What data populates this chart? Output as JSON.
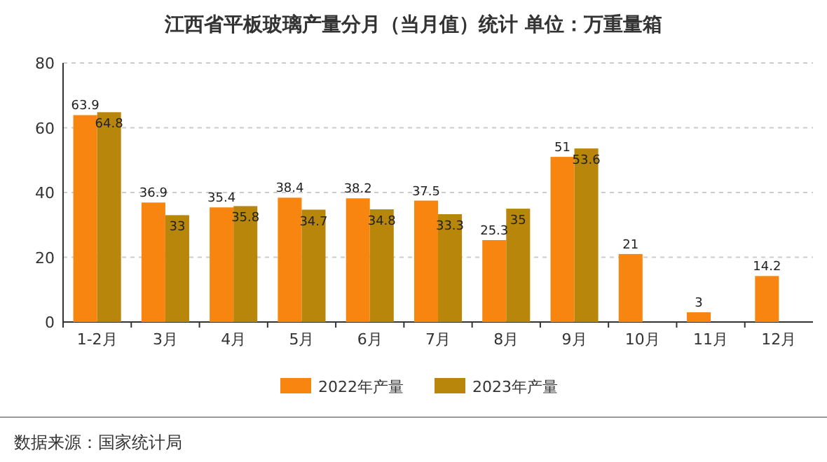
{
  "chart_data": {
    "type": "bar",
    "title": "江西省平板玻璃产量分月（当月值）统计 单位：万重量箱",
    "categories": [
      "1-2月",
      "3月",
      "4月",
      "5月",
      "6月",
      "7月",
      "8月",
      "9月",
      "10月",
      "11月",
      "12月"
    ],
    "series": [
      {
        "name": "2022年产量",
        "color": "#f7850f",
        "values": [
          63.9,
          36.9,
          35.4,
          38.4,
          38.2,
          37.5,
          25.3,
          51,
          21,
          3,
          14.2
        ]
      },
      {
        "name": "2023年产量",
        "color": "#b8860b",
        "values": [
          64.8,
          33,
          35.8,
          34.7,
          34.8,
          33.3,
          35,
          53.6,
          null,
          null,
          null
        ]
      }
    ],
    "ylim": [
      0,
      80
    ],
    "yticks": [
      0,
      20,
      40,
      60,
      80
    ],
    "grid": "y",
    "legend": "bottom",
    "data_labels": true,
    "annotations": [
      "数据来源：国家统计局"
    ]
  }
}
